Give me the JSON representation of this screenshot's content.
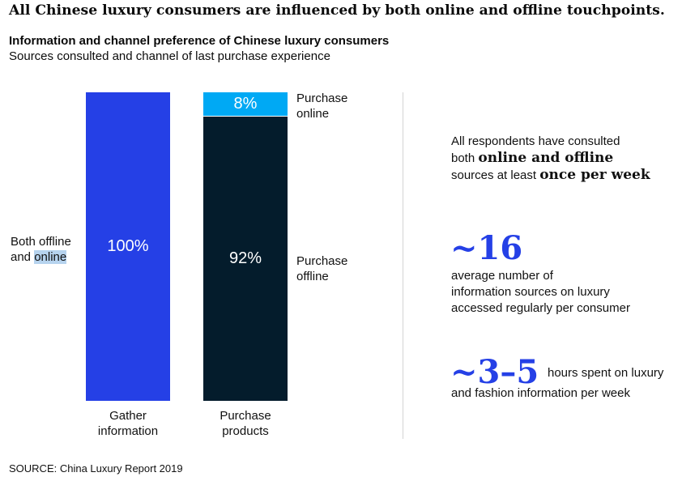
{
  "headline": "All Chinese luxury consumers are influenced by both online and offline touchpoints.",
  "chart_data": {
    "type": "bar",
    "stacked": true,
    "title": "Information and channel preference of Chinese luxury consumers",
    "subtitle": "Sources consulted and channel of last purchase experience",
    "categories": [
      "Gather information",
      "Purchase products"
    ],
    "category_lines": [
      [
        "Gather",
        "information"
      ],
      [
        "Purchase",
        "products"
      ]
    ],
    "series": [
      {
        "name": "Both offline and online",
        "values": [
          100,
          0
        ],
        "labels": [
          "100%",
          ""
        ],
        "color": "#2540e6"
      },
      {
        "name": "Purchase offline",
        "values": [
          0,
          92
        ],
        "labels": [
          "",
          "92%"
        ],
        "color": "#041c2c"
      },
      {
        "name": "Purchase online",
        "values": [
          0,
          8
        ],
        "labels": [
          "",
          "8%"
        ],
        "color": "#00a9f4"
      }
    ],
    "ylim": [
      0,
      100
    ],
    "legend": "inline",
    "grid": false
  },
  "legend_labels": {
    "both_line1": "Both offline",
    "both_line2_prefix": "and ",
    "both_line2_highlight": "online",
    "online_line1": "Purchase",
    "online_line2": "online",
    "offline_line1": "Purchase",
    "offline_line2": "offline"
  },
  "facts": {
    "fact1": {
      "line1": "All respondents have consulted",
      "line2_prefix": "both ",
      "line2_bold": "online and offline",
      "line3_prefix": "sources at least ",
      "line3_bold": "once per week"
    },
    "fact2": {
      "number": "~16",
      "line1": "average number of",
      "line2": "information sources on luxury",
      "line3": "accessed regularly per consumer"
    },
    "fact3": {
      "number": "~3–5",
      "line1": "hours spent on luxury",
      "line2": "and fashion information per week"
    }
  },
  "colors": {
    "accent_blue": "#2540e6",
    "dark_navy": "#041c2c",
    "light_blue": "#00a9f4",
    "highlight": "#b6d3ee"
  },
  "source": "SOURCE: China Luxury Report 2019"
}
